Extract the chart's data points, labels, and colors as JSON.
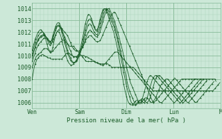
{
  "title": "",
  "xlabel": "Pression niveau de la mer( hPa )",
  "ylabel": "",
  "bg_color": "#cce8d8",
  "grid_color_major": "#88bb99",
  "grid_color_minor": "#aad4bb",
  "line_color": "#1a5c28",
  "marker_color": "#1a5c28",
  "ylim": [
    1005.5,
    1014.5
  ],
  "yticks": [
    1006,
    1007,
    1008,
    1009,
    1010,
    1011,
    1012,
    1013,
    1014
  ],
  "day_labels": [
    "Ven",
    "Sam",
    "Dim",
    "Lun",
    "M"
  ],
  "day_positions": [
    0,
    48,
    96,
    144,
    192
  ],
  "num_points": 193,
  "series": [
    [
      1008.0,
      1008.5,
      1009.0,
      1009.3,
      1009.5,
      1009.7,
      1009.8,
      1009.9,
      1010.0,
      1010.0,
      1010.1,
      1010.1,
      1010.0,
      1010.0,
      1009.9,
      1009.9,
      1009.8,
      1009.8,
      1009.8,
      1009.7,
      1009.7,
      1009.7,
      1009.7,
      1009.7,
      1009.7,
      1009.7,
      1009.7,
      1009.7,
      1009.7,
      1009.7,
      1009.7,
      1009.8,
      1009.9,
      1010.0,
      1010.1,
      1010.2,
      1010.2,
      1010.2,
      1010.2,
      1010.1,
      1010.0,
      1010.0,
      1009.9,
      1009.9,
      1009.9,
      1009.9,
      1009.9,
      1010.0,
      1010.0,
      1010.0,
      1010.0,
      1010.0,
      1010.0,
      1010.0,
      1009.9,
      1009.9,
      1009.9,
      1009.8,
      1009.8,
      1009.7,
      1009.7,
      1009.6,
      1009.6,
      1009.5,
      1009.5,
      1009.4,
      1009.4,
      1009.4,
      1009.3,
      1009.3,
      1009.3,
      1009.3,
      1009.3,
      1009.3,
      1009.3,
      1009.3,
      1009.3,
      1009.3,
      1009.2,
      1009.2,
      1009.1,
      1009.0,
      1009.0,
      1009.0,
      1009.0,
      1009.0,
      1009.0,
      1009.0,
      1009.0,
      1009.0,
      1009.0,
      1009.0,
      1009.0,
      1009.0,
      1009.0,
      1009.0,
      1009.0,
      1009.0,
      1009.0,
      1009.0,
      1009.0,
      1009.0,
      1009.0,
      1009.0,
      1008.9,
      1008.8,
      1008.7,
      1008.6,
      1008.5,
      1008.4,
      1008.3,
      1008.2,
      1008.1,
      1008.0,
      1007.9,
      1007.8,
      1007.7,
      1007.6,
      1007.5,
      1007.4,
      1007.3,
      1007.2,
      1007.1,
      1007.0,
      1007.0,
      1007.0,
      1007.0,
      1007.0,
      1007.0,
      1007.0,
      1007.0,
      1007.0,
      1007.0,
      1007.0,
      1007.0,
      1007.0,
      1007.0,
      1007.0,
      1007.0,
      1007.0,
      1007.0,
      1007.0,
      1007.0,
      1007.0,
      1007.0,
      1007.0,
      1007.0,
      1007.0,
      1007.0,
      1007.0,
      1007.0,
      1007.0,
      1007.0,
      1007.0,
      1007.0,
      1007.0,
      1007.0,
      1007.0,
      1007.0,
      1007.0,
      1007.0,
      1007.0,
      1007.0,
      1007.0,
      1007.0,
      1007.0,
      1007.0,
      1007.0,
      1007.0,
      1007.0,
      1007.0,
      1007.0,
      1007.0,
      1007.0,
      1007.0,
      1007.0,
      1007.0,
      1007.0,
      1007.0,
      1007.0,
      1007.0,
      1007.0,
      1007.0,
      1007.0,
      1007.0,
      1007.1,
      1007.2,
      1007.3,
      1007.4,
      1007.5,
      1007.6,
      1007.7
    ],
    [
      1009.0,
      1009.2,
      1009.5,
      1009.7,
      1009.9,
      1010.0,
      1010.1,
      1010.2,
      1010.2,
      1010.3,
      1010.4,
      1010.5,
      1010.6,
      1010.6,
      1010.6,
      1010.6,
      1010.5,
      1010.4,
      1010.4,
      1010.3,
      1010.3,
      1010.4,
      1010.5,
      1010.6,
      1010.7,
      1010.8,
      1010.9,
      1011.0,
      1011.1,
      1011.2,
      1011.2,
      1011.3,
      1011.3,
      1011.3,
      1011.2,
      1011.1,
      1011.0,
      1010.9,
      1010.8,
      1010.8,
      1010.8,
      1010.8,
      1010.8,
      1010.7,
      1010.6,
      1010.5,
      1010.4,
      1010.3,
      1010.2,
      1010.1,
      1010.0,
      1009.9,
      1009.8,
      1009.7,
      1009.6,
      1009.5,
      1009.5,
      1009.5,
      1009.5,
      1009.5,
      1009.5,
      1009.5,
      1009.5,
      1009.5,
      1009.4,
      1009.4,
      1009.4,
      1009.3,
      1009.3,
      1009.3,
      1009.2,
      1009.2,
      1009.2,
      1009.2,
      1009.3,
      1009.4,
      1009.5,
      1009.6,
      1009.7,
      1009.8,
      1009.9,
      1010.0,
      1010.1,
      1010.2,
      1010.3,
      1010.3,
      1010.3,
      1010.3,
      1010.2,
      1010.1,
      1010.0,
      1009.9,
      1009.8,
      1009.7,
      1009.6,
      1009.5,
      1009.4,
      1009.3,
      1009.2,
      1009.1,
      1009.0,
      1008.9,
      1008.8,
      1008.7,
      1008.6,
      1008.5,
      1008.4,
      1008.3,
      1008.2,
      1008.1,
      1008.0,
      1007.9,
      1007.8,
      1007.7,
      1007.6,
      1007.5,
      1007.4,
      1007.3,
      1007.2,
      1007.1,
      1007.0,
      1006.9,
      1006.8,
      1006.7,
      1006.6,
      1006.5,
      1006.4,
      1006.3,
      1006.2,
      1006.1,
      1006.0,
      1006.0,
      1006.0,
      1006.1,
      1006.2,
      1006.3,
      1006.4,
      1006.5,
      1006.6,
      1006.7,
      1006.8,
      1006.9,
      1007.0,
      1007.1,
      1007.2,
      1007.3,
      1007.4,
      1007.5,
      1007.6,
      1007.7,
      1007.8,
      1007.9,
      1008.0,
      1008.0,
      1008.0,
      1008.0,
      1008.0,
      1008.0,
      1008.0,
      1008.0,
      1008.0,
      1008.0,
      1008.0,
      1008.0,
      1008.0,
      1008.0,
      1008.0,
      1008.0,
      1008.0,
      1008.0,
      1008.0,
      1008.0,
      1008.0,
      1008.0,
      1008.0,
      1008.0,
      1008.0,
      1008.0,
      1008.0,
      1008.0,
      1008.0,
      1008.0,
      1008.0,
      1008.0,
      1008.0,
      1008.0,
      1008.0,
      1007.8
    ],
    [
      1009.5,
      1009.7,
      1010.0,
      1010.2,
      1010.5,
      1010.7,
      1010.9,
      1011.0,
      1011.1,
      1011.2,
      1011.3,
      1011.4,
      1011.5,
      1011.5,
      1011.5,
      1011.4,
      1011.3,
      1011.2,
      1011.1,
      1011.0,
      1011.1,
      1011.2,
      1011.4,
      1011.6,
      1011.8,
      1012.0,
      1012.1,
      1012.2,
      1012.3,
      1012.4,
      1012.3,
      1012.2,
      1012.1,
      1012.0,
      1011.9,
      1011.8,
      1011.7,
      1011.5,
      1011.3,
      1011.1,
      1010.9,
      1010.7,
      1010.6,
      1010.5,
      1010.4,
      1010.4,
      1010.4,
      1010.4,
      1010.4,
      1010.5,
      1010.6,
      1010.7,
      1010.8,
      1011.0,
      1011.2,
      1011.4,
      1011.5,
      1011.6,
      1011.7,
      1011.7,
      1011.7,
      1011.6,
      1011.5,
      1011.4,
      1011.3,
      1011.2,
      1011.2,
      1011.2,
      1011.2,
      1011.3,
      1011.4,
      1011.6,
      1011.8,
      1012.0,
      1012.2,
      1012.4,
      1012.6,
      1012.8,
      1013.0,
      1013.2,
      1013.4,
      1013.5,
      1013.6,
      1013.7,
      1013.7,
      1013.6,
      1013.4,
      1013.2,
      1013.0,
      1012.8,
      1012.6,
      1012.4,
      1012.2,
      1012.0,
      1011.8,
      1011.6,
      1011.4,
      1011.2,
      1011.0,
      1010.8,
      1010.6,
      1010.4,
      1010.2,
      1010.0,
      1009.8,
      1009.6,
      1009.4,
      1009.2,
      1009.0,
      1008.8,
      1008.6,
      1008.4,
      1008.2,
      1008.0,
      1007.8,
      1007.6,
      1007.4,
      1007.2,
      1007.0,
      1006.8,
      1006.6,
      1006.4,
      1006.2,
      1006.0,
      1006.0,
      1006.1,
      1006.2,
      1006.3,
      1006.4,
      1006.5,
      1006.6,
      1006.7,
      1006.8,
      1006.9,
      1007.0,
      1007.1,
      1007.2,
      1007.3,
      1007.4,
      1007.5,
      1007.6,
      1007.7,
      1007.8,
      1007.9,
      1008.0,
      1008.1,
      1008.0,
      1007.9,
      1007.8,
      1007.7,
      1007.6,
      1007.5,
      1007.4,
      1007.3,
      1007.2,
      1007.1,
      1007.0,
      1006.9,
      1006.8,
      1006.7,
      1006.6,
      1006.5,
      1006.4,
      1006.3,
      1006.2,
      1006.1,
      1006.0,
      1006.0,
      1006.1,
      1006.2,
      1006.3,
      1006.4,
      1006.5,
      1006.6,
      1006.7,
      1006.8,
      1006.9,
      1007.0,
      1007.1,
      1007.2,
      1007.3,
      1007.4,
      1007.5,
      1007.6,
      1007.7,
      1007.8
    ],
    [
      1009.8,
      1010.1,
      1010.4,
      1010.7,
      1010.9,
      1011.1,
      1011.3,
      1011.4,
      1011.5,
      1011.6,
      1011.6,
      1011.7,
      1011.7,
      1011.7,
      1011.6,
      1011.5,
      1011.4,
      1011.3,
      1011.2,
      1011.2,
      1011.3,
      1011.5,
      1011.8,
      1012.0,
      1012.2,
      1012.4,
      1012.5,
      1012.5,
      1012.5,
      1012.4,
      1012.2,
      1012.0,
      1011.8,
      1011.6,
      1011.4,
      1011.2,
      1011.0,
      1010.8,
      1010.6,
      1010.4,
      1010.2,
      1010.0,
      1009.9,
      1009.9,
      1009.9,
      1009.9,
      1010.0,
      1010.1,
      1010.2,
      1010.3,
      1010.5,
      1010.7,
      1010.9,
      1011.1,
      1011.4,
      1011.6,
      1011.8,
      1012.0,
      1012.1,
      1012.2,
      1012.1,
      1012.0,
      1011.9,
      1011.8,
      1011.7,
      1011.6,
      1011.6,
      1011.7,
      1011.8,
      1012.0,
      1012.3,
      1012.6,
      1012.9,
      1013.2,
      1013.5,
      1013.7,
      1013.9,
      1014.0,
      1014.0,
      1013.9,
      1013.7,
      1013.5,
      1013.3,
      1013.1,
      1012.9,
      1012.6,
      1012.3,
      1012.0,
      1011.7,
      1011.4,
      1011.0,
      1010.7,
      1010.4,
      1010.0,
      1009.7,
      1009.4,
      1009.0,
      1008.7,
      1008.4,
      1008.0,
      1007.7,
      1007.5,
      1007.3,
      1007.1,
      1006.9,
      1006.7,
      1006.5,
      1006.3,
      1006.1,
      1005.9,
      1005.9,
      1006.0,
      1006.1,
      1006.2,
      1006.3,
      1006.4,
      1006.4,
      1006.4,
      1006.3,
      1006.2,
      1006.1,
      1006.0,
      1006.0,
      1006.1,
      1006.2,
      1006.3,
      1006.5,
      1006.7,
      1006.9,
      1007.1,
      1007.3,
      1007.5,
      1007.6,
      1007.7,
      1007.8,
      1007.9,
      1008.0,
      1008.0,
      1008.0,
      1007.9,
      1007.8,
      1007.7,
      1007.6,
      1007.5,
      1007.4,
      1007.3,
      1007.2,
      1007.1,
      1007.0,
      1006.9,
      1006.8,
      1006.7,
      1006.6,
      1006.5,
      1006.4,
      1006.3,
      1006.2,
      1006.1,
      1006.0,
      1006.0,
      1006.1,
      1006.2,
      1006.3,
      1006.4,
      1006.5,
      1006.6,
      1006.7,
      1006.8,
      1006.9,
      1007.0,
      1007.1,
      1007.2,
      1007.3,
      1007.4,
      1007.5,
      1007.6,
      1007.7,
      1007.8,
      1007.9
    ],
    [
      1010.0,
      1010.2,
      1010.5,
      1010.7,
      1011.0,
      1011.2,
      1011.4,
      1011.5,
      1011.6,
      1011.7,
      1011.7,
      1011.8,
      1011.8,
      1011.7,
      1011.6,
      1011.5,
      1011.4,
      1011.3,
      1011.2,
      1011.2,
      1011.4,
      1011.7,
      1012.0,
      1012.3,
      1012.5,
      1012.7,
      1012.8,
      1012.8,
      1012.7,
      1012.5,
      1012.3,
      1012.0,
      1011.7,
      1011.4,
      1011.1,
      1010.8,
      1010.5,
      1010.2,
      1010.0,
      1009.8,
      1009.6,
      1009.5,
      1009.4,
      1009.4,
      1009.4,
      1009.5,
      1009.6,
      1009.8,
      1010.0,
      1010.2,
      1010.5,
      1010.8,
      1011.1,
      1011.5,
      1011.8,
      1012.1,
      1012.4,
      1012.6,
      1012.7,
      1012.7,
      1012.6,
      1012.4,
      1012.2,
      1012.0,
      1011.9,
      1011.8,
      1011.8,
      1011.9,
      1012.1,
      1012.4,
      1012.7,
      1013.0,
      1013.3,
      1013.6,
      1013.8,
      1013.9,
      1014.0,
      1013.9,
      1013.8,
      1013.6,
      1013.4,
      1013.2,
      1013.0,
      1012.8,
      1012.5,
      1012.2,
      1011.9,
      1011.5,
      1011.2,
      1010.8,
      1010.4,
      1010.0,
      1009.6,
      1009.2,
      1008.8,
      1008.4,
      1008.0,
      1007.6,
      1007.3,
      1007.0,
      1006.8,
      1006.6,
      1006.4,
      1006.2,
      1006.0,
      1005.8,
      1005.8,
      1005.9,
      1006.0,
      1006.1,
      1006.2,
      1006.3,
      1006.3,
      1006.3,
      1006.2,
      1006.1,
      1006.0,
      1006.0,
      1006.1,
      1006.2,
      1006.4,
      1006.7,
      1007.0,
      1007.3,
      1007.6,
      1007.9,
      1008.1,
      1008.2,
      1008.3,
      1008.3,
      1008.3,
      1008.2,
      1008.1,
      1008.0,
      1007.9,
      1007.8,
      1007.7,
      1007.6,
      1007.5,
      1007.4,
      1007.3,
      1007.2,
      1007.1,
      1007.0,
      1006.9,
      1006.8,
      1006.7,
      1006.6,
      1006.5,
      1006.4,
      1006.3,
      1006.2,
      1006.1,
      1006.0,
      1006.0,
      1006.1,
      1006.2,
      1006.3,
      1006.4,
      1006.5,
      1006.6,
      1006.7,
      1006.8,
      1006.9,
      1007.0,
      1007.1,
      1007.2,
      1007.3,
      1007.4,
      1007.5,
      1007.6,
      1007.7,
      1007.8,
      1007.9,
      1008.0
    ],
    [
      1010.2,
      1010.5,
      1010.8,
      1011.1,
      1011.3,
      1011.5,
      1011.7,
      1011.8,
      1011.9,
      1012.0,
      1012.0,
      1012.0,
      1011.9,
      1011.8,
      1011.6,
      1011.4,
      1011.2,
      1011.0,
      1010.9,
      1010.9,
      1011.1,
      1011.4,
      1011.7,
      1012.0,
      1012.3,
      1012.5,
      1012.6,
      1012.6,
      1012.5,
      1012.3,
      1012.0,
      1011.7,
      1011.4,
      1011.1,
      1010.8,
      1010.5,
      1010.2,
      1010.0,
      1009.8,
      1009.6,
      1009.5,
      1009.4,
      1009.4,
      1009.4,
      1009.5,
      1009.6,
      1009.7,
      1009.9,
      1010.1,
      1010.4,
      1010.7,
      1011.0,
      1011.4,
      1011.8,
      1012.2,
      1012.5,
      1012.8,
      1013.0,
      1013.1,
      1013.1,
      1013.0,
      1012.8,
      1012.6,
      1012.4,
      1012.2,
      1012.1,
      1012.1,
      1012.2,
      1012.5,
      1012.8,
      1013.1,
      1013.4,
      1013.7,
      1013.9,
      1014.0,
      1014.0,
      1013.9,
      1013.7,
      1013.5,
      1013.3,
      1013.1,
      1012.9,
      1012.7,
      1012.5,
      1012.2,
      1011.9,
      1011.6,
      1011.2,
      1010.8,
      1010.4,
      1010.0,
      1009.5,
      1009.1,
      1008.6,
      1008.2,
      1007.8,
      1007.4,
      1007.1,
      1006.8,
      1006.5,
      1006.2,
      1006.0,
      1005.9,
      1005.8,
      1005.8,
      1005.8,
      1005.9,
      1006.0,
      1006.1,
      1006.2,
      1006.2,
      1006.2,
      1006.1,
      1006.0,
      1006.0,
      1006.1,
      1006.2,
      1006.4,
      1006.7,
      1007.0,
      1007.3,
      1007.6,
      1007.9,
      1008.1,
      1008.2,
      1008.3,
      1008.3,
      1008.3,
      1008.2,
      1008.1,
      1008.0,
      1007.9,
      1007.8,
      1007.7,
      1007.6,
      1007.5,
      1007.4,
      1007.3,
      1007.2,
      1007.1,
      1007.0,
      1006.9,
      1006.8,
      1006.7,
      1006.6,
      1006.5,
      1006.4,
      1006.3,
      1006.2,
      1006.1,
      1006.0,
      1006.0,
      1006.1,
      1006.2,
      1006.3,
      1006.4,
      1006.5,
      1006.6,
      1006.7,
      1006.8,
      1006.9,
      1007.0,
      1007.1,
      1007.2,
      1007.3,
      1007.4,
      1007.5,
      1007.6,
      1007.7,
      1007.8,
      1007.9,
      1008.0,
      1008.0
    ],
    [
      1010.5,
      1010.8,
      1011.1,
      1011.4,
      1011.6,
      1011.8,
      1012.0,
      1012.1,
      1012.2,
      1012.2,
      1012.1,
      1012.0,
      1011.8,
      1011.6,
      1011.3,
      1011.0,
      1010.7,
      1010.5,
      1010.3,
      1010.2,
      1010.4,
      1010.7,
      1011.1,
      1011.5,
      1011.8,
      1012.0,
      1012.1,
      1012.0,
      1011.9,
      1011.7,
      1011.4,
      1011.0,
      1010.7,
      1010.4,
      1010.1,
      1009.8,
      1009.6,
      1009.4,
      1009.3,
      1009.2,
      1009.2,
      1009.2,
      1009.3,
      1009.4,
      1009.5,
      1009.6,
      1009.8,
      1010.0,
      1010.3,
      1010.6,
      1011.0,
      1011.4,
      1011.8,
      1012.3,
      1012.7,
      1013.0,
      1013.3,
      1013.5,
      1013.5,
      1013.4,
      1013.2,
      1013.0,
      1012.7,
      1012.5,
      1012.3,
      1012.2,
      1012.2,
      1012.4,
      1012.7,
      1013.1,
      1013.4,
      1013.7,
      1013.9,
      1014.0,
      1014.0,
      1013.9,
      1013.7,
      1013.5,
      1013.2,
      1013.0,
      1012.7,
      1012.5,
      1012.2,
      1012.0,
      1011.6,
      1011.3,
      1010.9,
      1010.5,
      1010.0,
      1009.5,
      1009.0,
      1008.5,
      1008.1,
      1007.6,
      1007.2,
      1006.8,
      1006.5,
      1006.2,
      1006.0,
      1005.9,
      1005.8,
      1005.8,
      1005.8,
      1005.9,
      1006.0,
      1006.1,
      1006.2,
      1006.2,
      1006.1,
      1006.0,
      1006.0,
      1006.1,
      1006.3,
      1006.6,
      1006.9,
      1007.2,
      1007.5,
      1007.8,
      1008.0,
      1008.2,
      1008.3,
      1008.3,
      1008.2,
      1008.1,
      1008.0,
      1007.9,
      1007.8,
      1007.7,
      1007.6,
      1007.5,
      1007.4,
      1007.3,
      1007.2,
      1007.1,
      1007.0,
      1006.9,
      1006.8,
      1006.7,
      1006.6,
      1006.5,
      1006.4,
      1006.3,
      1006.2,
      1006.1,
      1006.0,
      1006.0,
      1006.1,
      1006.2,
      1006.3,
      1006.4,
      1006.5,
      1006.6,
      1006.7,
      1006.8,
      1006.9,
      1007.0,
      1007.1,
      1007.2,
      1007.3,
      1007.4,
      1007.5,
      1007.6,
      1007.7,
      1007.8,
      1007.9,
      1008.0,
      1008.0,
      1008.0
    ]
  ]
}
